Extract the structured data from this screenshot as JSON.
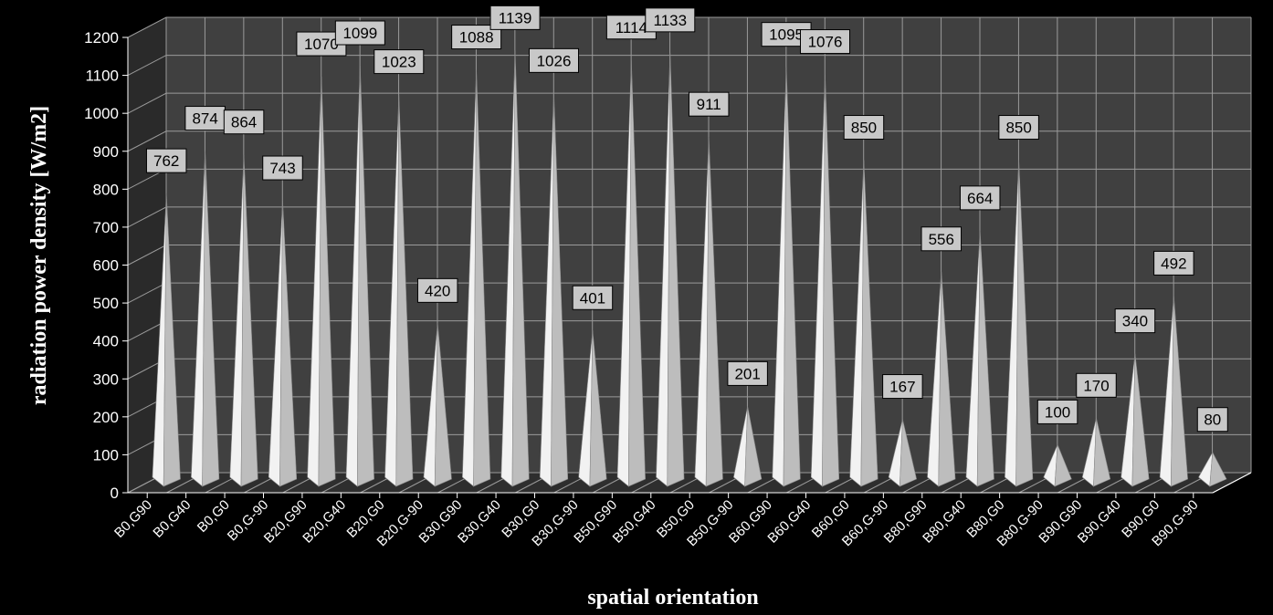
{
  "chart_data": {
    "type": "bar",
    "style": "3d-cone",
    "xlabel": "spatial orientation",
    "ylabel": "radiation power density [W/m2]",
    "ylim": [
      0,
      1200
    ],
    "yticks": [
      0,
      100,
      200,
      300,
      400,
      500,
      600,
      700,
      800,
      900,
      1000,
      1100,
      1200
    ],
    "grid": true,
    "categories": [
      "B0,G90",
      "B0,G40",
      "B0,G0",
      "B0,G-90",
      "B20,G90",
      "B20,G40",
      "B20,G0",
      "B20,G-90",
      "B30,G90",
      "B30,G40",
      "B30,G0",
      "B30,G-90",
      "B50,G90",
      "B50,G40",
      "B50,G0",
      "B50,G-90",
      "B60,G90",
      "B60,G40",
      "B60,G0",
      "B60,G-90",
      "B80,G90",
      "B80,G40",
      "B80,G0",
      "B80,G-90",
      "B90,G90",
      "B90,G40",
      "B90,G0",
      "B90,G-90"
    ],
    "values": [
      762,
      874,
      864,
      743,
      1070,
      1099,
      1023,
      420,
      1088,
      1139,
      1026,
      401,
      1114,
      1133,
      911,
      201,
      1095,
      1076,
      850,
      167,
      556,
      664,
      850,
      100,
      170,
      340,
      492,
      80
    ],
    "colors": {
      "background": "#000000",
      "plot_wall": "#404040",
      "side_wall": "#2a2a2a",
      "floor": "#2e2e2e",
      "grid": "#9a9a9a",
      "cone_light": "#f2f2f2",
      "cone_dark": "#bdbdbd",
      "label_box": "#c8c8c8"
    }
  }
}
